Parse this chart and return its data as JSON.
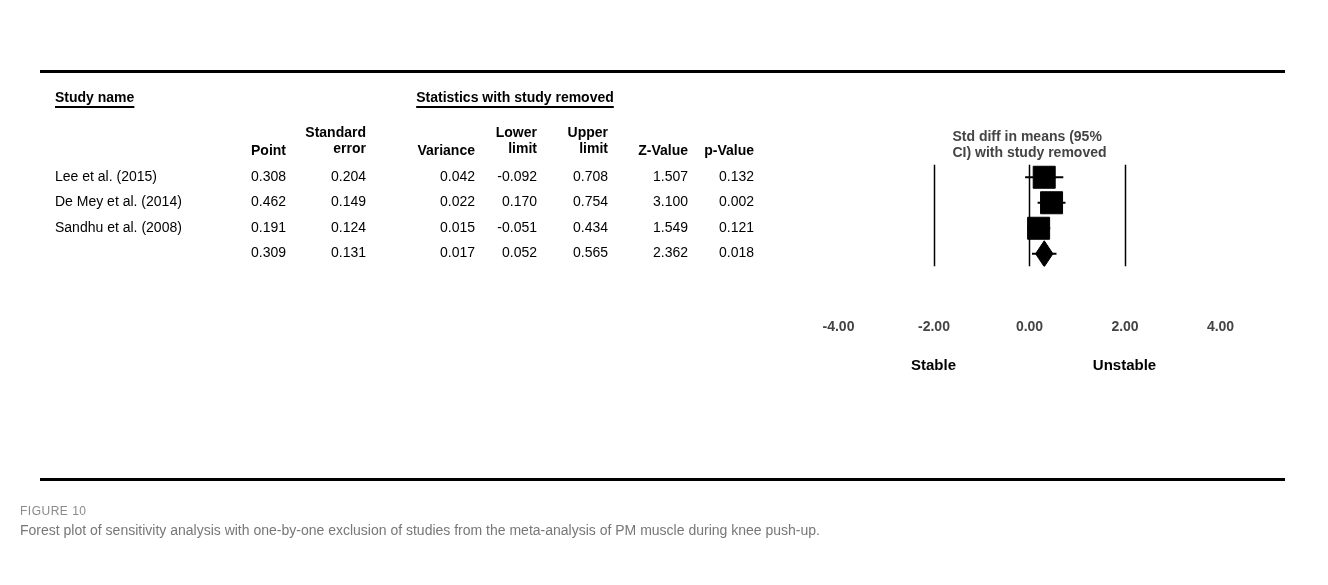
{
  "chart_data": [
    {
      "type": "other",
      "title": "Statistics with study removed",
      "ylabel": "Study name",
      "categories": [
        "Point",
        "Standard error",
        "Variance",
        "Lower limit",
        "Upper limit",
        "Z-Value",
        "p-Value"
      ],
      "y_categories": [
        "Lee et al. (2015)",
        "De Mey et al. (2014)",
        "Sandhu et al. (2008)",
        null
      ],
      "cell_labels": [
        [
          "0.308",
          "0.204",
          "0.042",
          "-0.092",
          "0.708",
          "1.507",
          "0.132"
        ],
        [
          "0.462",
          "0.149",
          "0.022",
          "0.170",
          "0.754",
          "3.100",
          "0.002"
        ],
        [
          "0.191",
          "0.124",
          "0.015",
          "-0.051",
          "0.434",
          "1.549",
          "0.121"
        ],
        [
          "0.309",
          "0.131",
          "0.017",
          "0.052",
          "0.565",
          "2.362",
          "0.018"
        ]
      ]
    },
    {
      "type": "scatter",
      "orientation": "horizontal",
      "title": "Std diff in means (95% CI) with study removed",
      "categories": [
        null,
        null,
        null,
        null
      ],
      "tick_labels": "x",
      "grid": "x",
      "xlim": [
        -4,
        4
      ],
      "xticks": [
        {
          "value": -4,
          "label": "-4.00"
        },
        {
          "value": -2,
          "label": "-2.00"
        },
        {
          "value": 0,
          "label": "0.00"
        },
        {
          "value": 2,
          "label": "2.00"
        },
        {
          "value": 4,
          "label": "4.00"
        }
      ],
      "series": [
        {
          "color": "#000000",
          "marker": "square",
          "values": [
            0.308,
            0.462,
            0.191,
            null
          ],
          "errors": [
            [
              -0.092,
              0.708
            ],
            [
              0.17,
              0.754
            ],
            [
              -0.051,
              0.434
            ],
            null
          ]
        },
        {
          "color": "#000000",
          "marker": "diamond",
          "values": [
            null,
            null,
            null,
            0.309
          ],
          "errors": [
            null,
            null,
            null,
            [
              0.052,
              0.565
            ]
          ]
        }
      ],
      "annotations": [
        "Stable",
        "Unstable",
        "FIGURE 10",
        "Forest plot of sensitivity analysis with one-by-one exclusion of studies from the meta-analysis of PM muscle during knee push-up."
      ]
    }
  ]
}
